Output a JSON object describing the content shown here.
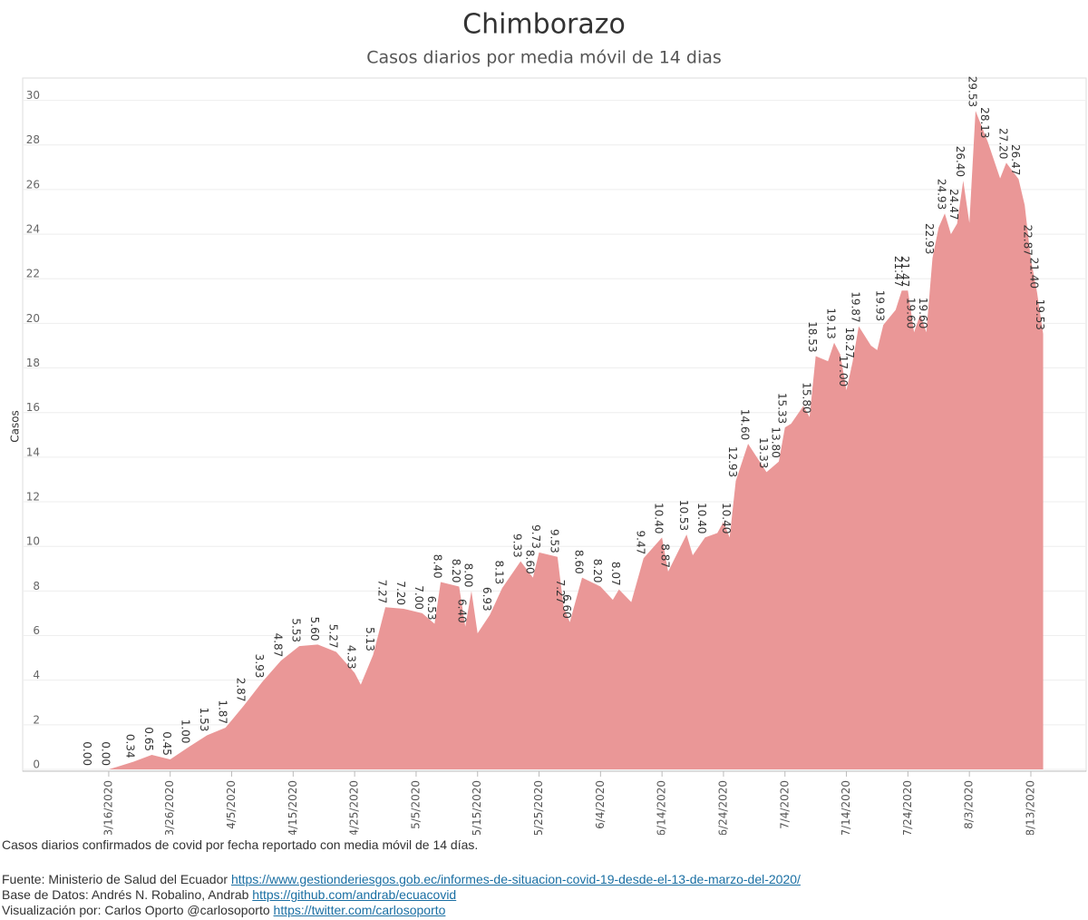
{
  "chart_data": {
    "type": "area",
    "title": "Chimborazo",
    "subtitle": "Casos diarios por media móvil de 14 dias",
    "y_label": "Casos",
    "color": "#ea9797",
    "grid": true,
    "xlim": [
      "3/2/2020",
      "8/22/2020"
    ],
    "xticks": [
      "3/16/2020",
      "3/26/2020",
      "4/5/2020",
      "4/15/2020",
      "4/25/2020",
      "5/5/2020",
      "5/15/2020",
      "5/25/2020",
      "6/4/2020",
      "6/14/2020",
      "6/24/2020",
      "7/4/2020",
      "7/14/2020",
      "7/24/2020",
      "8/3/2020",
      "8/13/2020"
    ],
    "ylim": [
      0,
      31
    ],
    "yticks": [
      0,
      2,
      4,
      6,
      8,
      10,
      12,
      14,
      16,
      18,
      20,
      22,
      24,
      26,
      28,
      30
    ],
    "x": [
      "3/13/2020",
      "3/16/2020",
      "3/20/2020",
      "3/23/2020",
      "3/26/2020",
      "3/29/2020",
      "4/1/2020",
      "4/4/2020",
      "4/7/2020",
      "4/10/2020",
      "4/13/2020",
      "4/16/2020",
      "4/19/2020",
      "4/22/2020",
      "4/25/2020",
      "4/26/2020",
      "4/28/2020",
      "4/30/2020",
      "5/3/2020",
      "5/6/2020",
      "5/8/2020",
      "5/9/2020",
      "5/12/2020",
      "5/13/2020",
      "5/14/2020",
      "5/15/2020",
      "5/17/2020",
      "5/19/2020",
      "5/22/2020",
      "5/24/2020",
      "5/25/2020",
      "5/28/2020",
      "5/29/2020",
      "5/30/2020",
      "6/1/2020",
      "6/4/2020",
      "6/6/2020",
      "6/7/2020",
      "6/9/2020",
      "6/11/2020",
      "6/14/2020",
      "6/15/2020",
      "6/18/2020",
      "6/19/2020",
      "6/21/2020",
      "6/23/2020",
      "6/24/2020",
      "6/25/2020",
      "6/26/2020",
      "6/28/2020",
      "7/1/2020",
      "7/3/2020",
      "7/4/2020",
      "7/5/2020",
      "7/7/2020",
      "7/8/2020",
      "7/9/2020",
      "7/11/2020",
      "7/12/2020",
      "7/13/2020",
      "7/14/2020",
      "7/15/2020",
      "7/16/2020",
      "7/18/2020",
      "7/19/2020",
      "7/20/2020",
      "7/22/2020",
      "7/23/2020",
      "7/24/2020",
      "7/25/2020",
      "7/26/2020",
      "7/27/2020",
      "7/28/2020",
      "7/29/2020",
      "7/30/2020",
      "7/31/2020",
      "8/1/2020",
      "8/2/2020",
      "8/3/2020",
      "8/4/2020",
      "8/6/2020",
      "8/8/2020",
      "8/9/2020",
      "8/11/2020",
      "8/12/2020",
      "8/13/2020",
      "8/14/2020",
      "8/15/2020"
    ],
    "values": [
      0,
      0,
      0.34,
      0.65,
      0.45,
      1,
      1.53,
      1.87,
      2.87,
      3.93,
      4.87,
      5.53,
      5.6,
      5.27,
      4.33,
      3.8,
      5.13,
      7.27,
      7.2,
      7,
      6.53,
      8.4,
      8.2,
      6.4,
      8,
      6.1,
      6.93,
      8.13,
      9.33,
      8.6,
      9.73,
      9.53,
      7.27,
      6.6,
      8.6,
      8.2,
      7.6,
      8.07,
      7.5,
      9.47,
      10.4,
      8.87,
      10.53,
      9.6,
      10.4,
      10.6,
      11.1,
      10.4,
      12.93,
      14.6,
      13.33,
      13.8,
      15.33,
      15.5,
      16.3,
      15.8,
      18.53,
      18.3,
      19.13,
      18.6,
      17,
      18.27,
      19.87,
      19,
      18.8,
      19.93,
      20.6,
      21.47,
      21.47,
      19.6,
      20.4,
      19.6,
      22.93,
      24.3,
      24.93,
      24,
      24.47,
      26.4,
      24.5,
      29.53,
      28.13,
      26.5,
      27.2,
      26.47,
      25.3,
      22.87,
      21.4,
      19.53
    ],
    "value_labels": [
      "0.00",
      "0.00",
      "0.34",
      "0.65",
      "0.45",
      "1.00",
      "1.53",
      "1.87",
      "2.87",
      "3.93",
      "4.87",
      "5.53",
      "5.60",
      "5.27",
      "4.33",
      null,
      "5.13",
      "7.27",
      "7.20",
      "7.00",
      "6.53",
      "8.40",
      "8.20",
      "6.40",
      "8.00",
      null,
      "6.93",
      "8.13",
      "9.33",
      "8.60",
      "9.73",
      "9.53",
      "7.27",
      "6.60",
      "8.60",
      "8.20",
      null,
      "8.07",
      null,
      "9.47",
      "10.40",
      "8.87",
      "10.53",
      null,
      "10.40",
      null,
      null,
      "10.40",
      "12.93",
      "14.60",
      "13.33",
      "13.80",
      "15.33",
      null,
      null,
      "15.80",
      "18.53",
      null,
      "19.13",
      null,
      "17.00",
      "18.27",
      "19.87",
      null,
      null,
      "19.93",
      null,
      "21.47",
      "21.47",
      "19.60",
      null,
      "19.60",
      "22.93",
      null,
      "24.93",
      null,
      "24.47",
      "26.40",
      null,
      "29.53",
      "28.13",
      null,
      "27.20",
      "26.47",
      null,
      "22.87",
      "21.40",
      "19.53"
    ]
  },
  "footer": {
    "note": "Casos diarios confirmados de covid por fecha reportado con media móvil de 14 días.",
    "lines": [
      {
        "label": "Fuente: Ministerio de Salud del Ecuador",
        "link": "https://www.gestionderiesgos.gob.ec/informes-de-situacion-covid-19-desde-el-13-de-marzo-del-2020/"
      },
      {
        "label": "Base de Datos: Andrés N. Robalino, Andrab",
        "link": "https://github.com/andrab/ecuacovid"
      },
      {
        "label": "Visualización por: Carlos Oporto @carlosoporto",
        "link": "https://twitter.com/carlosoporto"
      }
    ]
  }
}
